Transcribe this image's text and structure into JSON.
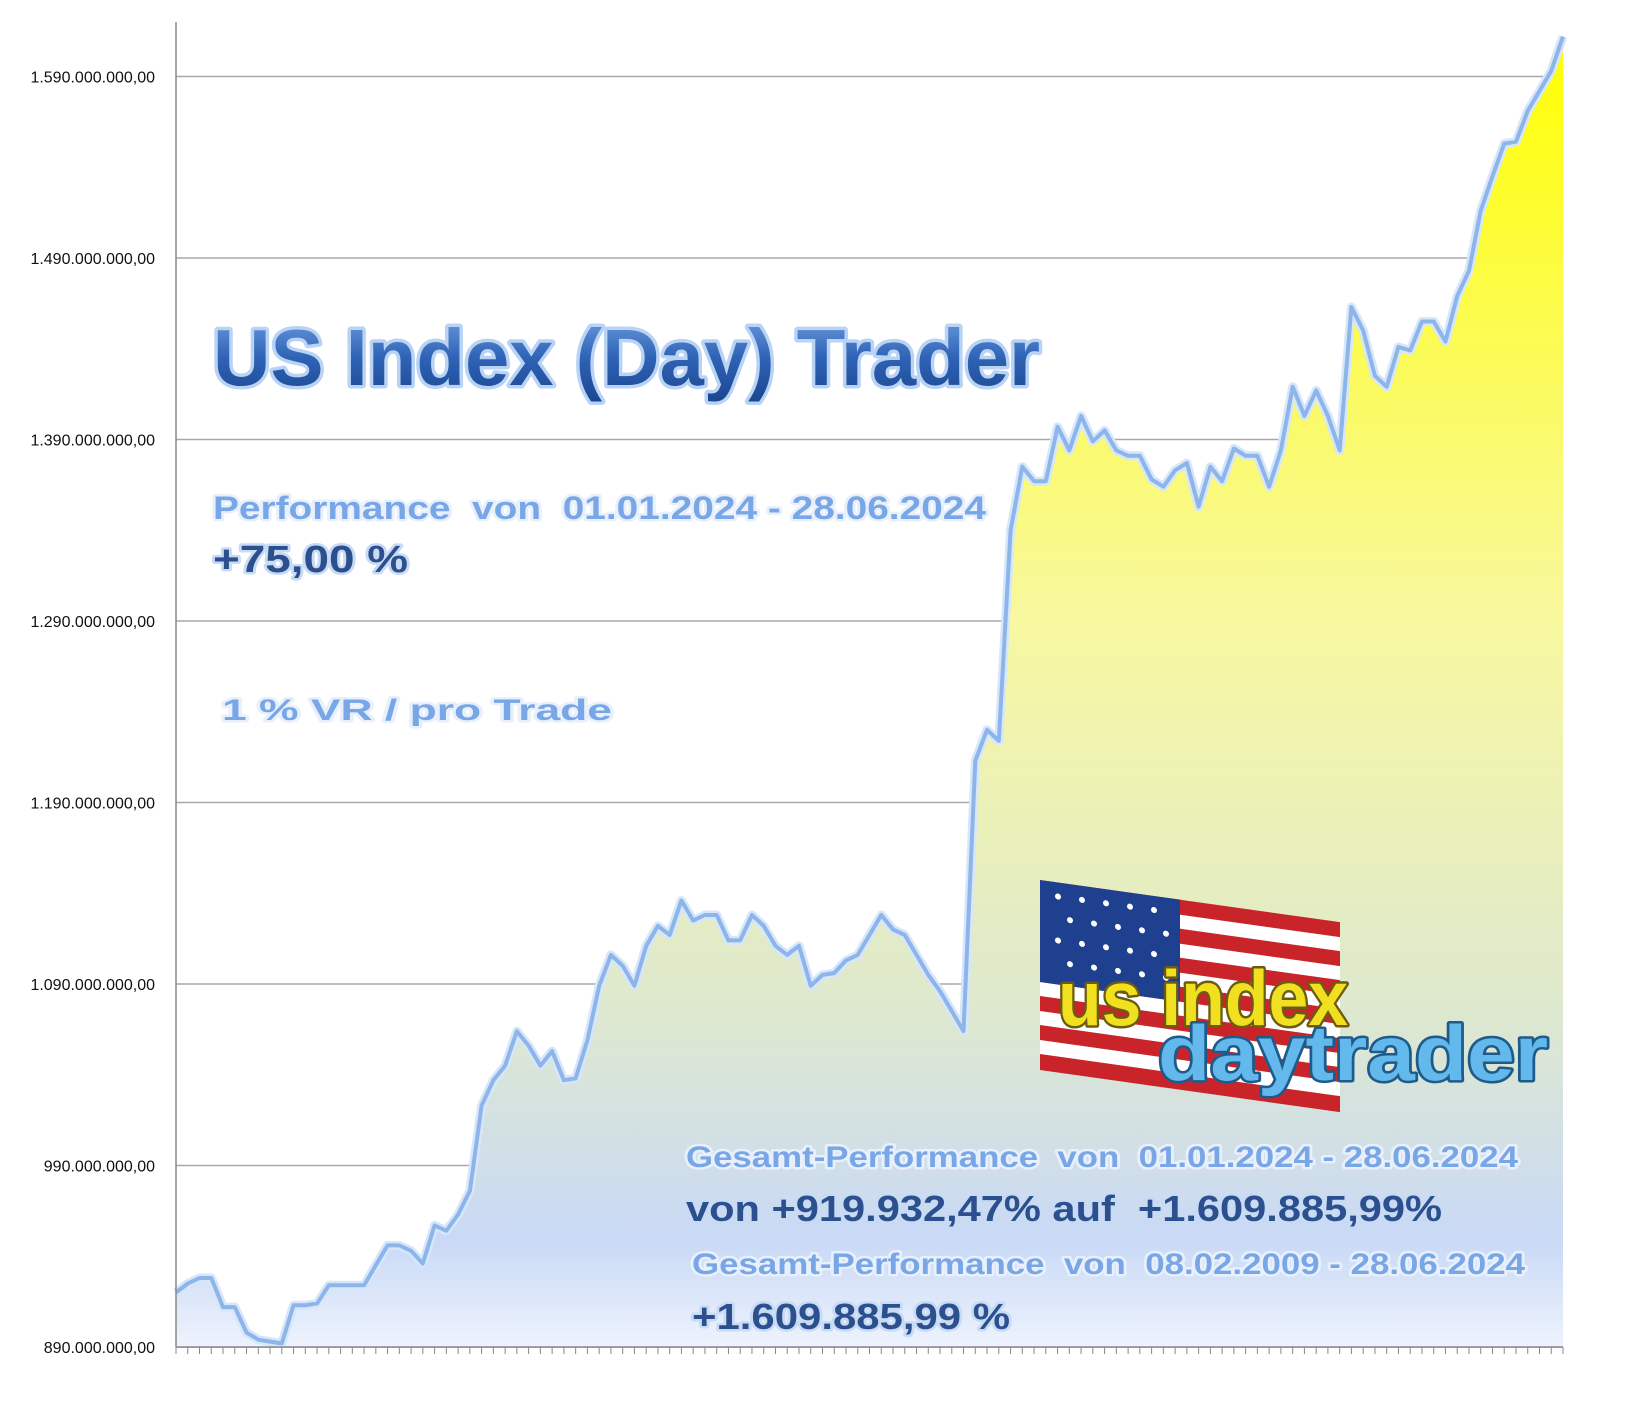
{
  "chart_data": {
    "type": "area",
    "annotations": [
      "US Index (Day) Trader",
      "Performance  von  01.01.2024 - 28.06.2024",
      "+75,00 %",
      "1 % VR / pro Trade",
      "us index",
      "daytrader",
      "Gesamt-Performance  von  01.01.2024 - 28.06.2024",
      "von +919.932,47% auf  +1.609.885,99%",
      "Gesamt-Performance  von  08.02.2009 - 28.06.2024",
      "+1.609.885,99 %"
    ],
    "categories": [
      null,
      null,
      null,
      null,
      null,
      null,
      null,
      null,
      null,
      null,
      null,
      null,
      null,
      null,
      null,
      null,
      null,
      null,
      null,
      null,
      null,
      null,
      null,
      null,
      null,
      null,
      null,
      null,
      null,
      null,
      null,
      null,
      null,
      null,
      null,
      null,
      null,
      null,
      null,
      null,
      null,
      null,
      null,
      null,
      null,
      null,
      null,
      null,
      null,
      null,
      null,
      null,
      null,
      null,
      null,
      null,
      null,
      null,
      null,
      null,
      null,
      null,
      null,
      null,
      null,
      null,
      null,
      null,
      null,
      null,
      null,
      null,
      null,
      null,
      null,
      null,
      null,
      null,
      null,
      null,
      null,
      null,
      null,
      null,
      null,
      null,
      null,
      null,
      null,
      null,
      null,
      null,
      null,
      null,
      null,
      null,
      null,
      null,
      null,
      null,
      null,
      null,
      null,
      null,
      null,
      null,
      null,
      null,
      null,
      null,
      null,
      null,
      null,
      null,
      null,
      null,
      null,
      null,
      null
    ],
    "values": [
      920000000,
      925000000,
      928000000,
      928000000,
      912000000,
      912000000,
      898000000,
      894000000,
      893000000,
      892000000,
      913000000,
      913000000,
      914000000,
      924000000,
      924000000,
      924000000,
      924000000,
      935000000,
      946000000,
      946000000,
      943000000,
      936000000,
      957000000,
      954000000,
      963000000,
      976000000,
      1023000000,
      1037000000,
      1045000000,
      1064000000,
      1056000000,
      1045000000,
      1053000000,
      1037000000,
      1038000000,
      1059000000,
      1089000000,
      1106000000,
      1100000000,
      1089000000,
      1111000000,
      1122000000,
      1117000000,
      1136000000,
      1125000000,
      1128000000,
      1128000000,
      1114000000,
      1114000000,
      1128000000,
      1122000000,
      1111000000,
      1106000000,
      1111000000,
      1089000000,
      1095000000,
      1096000000,
      1103000000,
      1106000000,
      1117000000,
      1128000000,
      1120000000,
      1117000000,
      1106000000,
      1095000000,
      1086000000,
      1075000000,
      1064000000,
      1213000000,
      1230000000,
      1224000000,
      1340000000,
      1375000000,
      1367000000,
      1367000000,
      1397000000,
      1384000000,
      1403000000,
      1389000000,
      1395000000,
      1384000000,
      1381000000,
      1381000000,
      1368000000,
      1364000000,
      1373000000,
      1377000000,
      1353000000,
      1375000000,
      1367000000,
      1385000000,
      1381000000,
      1381000000,
      1364000000,
      1384000000,
      1419000000,
      1403000000,
      1417000000,
      1403000000,
      1384000000,
      1463000000,
      1450000000,
      1425000000,
      1419000000,
      1441000000,
      1439000000,
      1455000000,
      1455000000,
      1444000000,
      1469000000,
      1483000000,
      1516000000,
      1535000000,
      1553000000,
      1554000000,
      1571000000,
      1582000000,
      1593000000,
      1612000000
    ],
    "color": "#ffff00",
    "line_color": "#8db5ea",
    "ylim": [
      890000000,
      1620000000
    ],
    "yticks": [
      {
        "value": 890000000,
        "label": "890.000.000,00"
      },
      {
        "value": 990000000,
        "label": "990.000.000,00"
      },
      {
        "value": 1090000000,
        "label": "1.090.000.000,00"
      },
      {
        "value": 1190000000,
        "label": "1.190.000.000,00"
      },
      {
        "value": 1290000000,
        "label": "1.290.000.000,00"
      },
      {
        "value": 1390000000,
        "label": "1.390.000.000,00"
      },
      {
        "value": 1490000000,
        "label": "1.490.000.000,00"
      },
      {
        "value": 1590000000,
        "label": "1.590.000.000,00"
      }
    ],
    "grid": true
  }
}
